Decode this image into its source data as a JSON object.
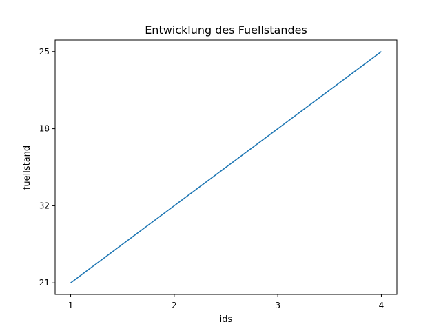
{
  "chart_data": {
    "type": "line",
    "title": "Entwicklung des Fuellstandes",
    "xlabel": "ids",
    "ylabel": "fuellstand",
    "x": [
      1,
      2,
      3,
      4
    ],
    "x_ticks": [
      "1",
      "2",
      "3",
      "4"
    ],
    "y_categories": [
      "21",
      "32",
      "18",
      "25"
    ],
    "series": [
      {
        "values": [
          "21",
          "32",
          "18",
          "25"
        ],
        "color": "#1f77b4"
      }
    ],
    "grid": false,
    "legend": "none"
  }
}
